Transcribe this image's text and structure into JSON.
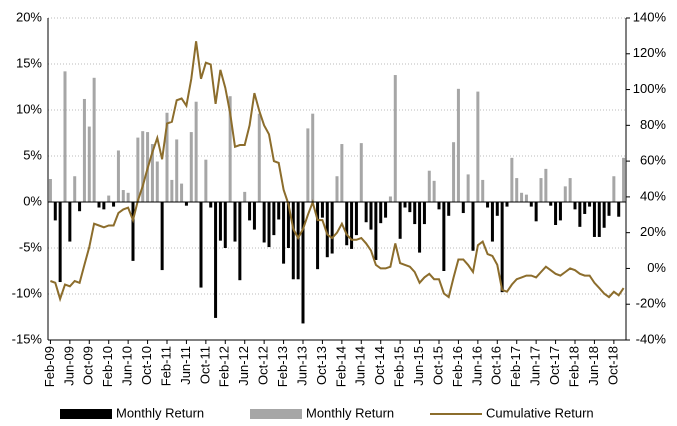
{
  "chart_data": {
    "type": "bar-line",
    "categories": [
      "Feb-09",
      null,
      null,
      null,
      "Jun-09",
      null,
      null,
      null,
      "Oct-09",
      null,
      null,
      null,
      "Feb-10",
      null,
      null,
      null,
      "Jun-10",
      null,
      null,
      null,
      "Oct-10",
      null,
      null,
      null,
      "Feb-11",
      null,
      null,
      null,
      "Jun-11",
      null,
      null,
      null,
      "Oct-11",
      null,
      null,
      null,
      "Feb-12",
      null,
      null,
      null,
      "Jun-12",
      null,
      null,
      null,
      "Oct-12",
      null,
      null,
      null,
      "Feb-13",
      null,
      null,
      null,
      "Jun-13",
      null,
      null,
      null,
      "Oct-13",
      null,
      null,
      null,
      "Feb-14",
      null,
      null,
      null,
      "Jun-14",
      null,
      null,
      null,
      "Oct-14",
      null,
      null,
      null,
      "Feb-15",
      null,
      null,
      null,
      "Jun-15",
      null,
      null,
      null,
      "Oct-15",
      null,
      null,
      null,
      "Feb-16",
      null,
      null,
      null,
      "Jun-16",
      null,
      null,
      null,
      "Oct-16",
      null,
      null,
      null,
      "Feb-17",
      null,
      null,
      null,
      "Jun-17",
      null,
      null,
      null,
      "Oct-17",
      null,
      null,
      null,
      "Feb-18",
      null,
      null,
      null,
      "Jun-18",
      null,
      null,
      null,
      "Oct-18",
      null,
      null
    ],
    "series": [
      {
        "name": "Monthly Return",
        "color": "#000000",
        "kind": "bar",
        "values": [
          null,
          -2.0,
          -8.7,
          null,
          -4.3,
          null,
          -1.0,
          null,
          null,
          null,
          -0.6,
          -0.8,
          null,
          -0.5,
          null,
          null,
          null,
          -6.4,
          null,
          null,
          null,
          null,
          null,
          -7.4,
          null,
          null,
          null,
          null,
          -0.4,
          null,
          null,
          -9.3,
          null,
          -0.6,
          -12.6,
          -4.2,
          -5.0,
          null,
          -4.3,
          -8.5,
          null,
          -2.0,
          -3.0,
          null,
          -4.4,
          -4.9,
          -3.6,
          -1.9,
          -6.7,
          -5.0,
          -8.4,
          -8.4,
          -13.2,
          null,
          null,
          -7.3,
          -1.7,
          -6.0,
          -5.6,
          null,
          null,
          -4.7,
          -5.1,
          -3.6,
          null,
          -2.2,
          -3.0,
          -6.3,
          -2.3,
          -1.7,
          null,
          null,
          -4.0,
          -0.6,
          -1.1,
          -2.4,
          -5.5,
          -2.4,
          null,
          null,
          -0.8,
          -7.5,
          -1.5,
          null,
          null,
          -1.2,
          null,
          -5.3,
          null,
          null,
          -0.6,
          -4.3,
          -1.5,
          -9.8,
          -0.5,
          null,
          null,
          null,
          null,
          -0.5,
          -2.1,
          null,
          null,
          -0.4,
          -2.5,
          -2.0,
          null,
          null,
          -0.8,
          -2.7,
          -1.3,
          -0.5,
          -3.8,
          -3.8,
          -2.8,
          -1.5,
          null,
          -1.6,
          null
        ]
      },
      {
        "name": "Monthly Return",
        "color": "#a6a6a6",
        "kind": "bar",
        "values": [
          2.5,
          null,
          null,
          14.2,
          null,
          2.8,
          null,
          11.2,
          8.2,
          13.5,
          null,
          null,
          0.7,
          null,
          5.6,
          1.3,
          1.0,
          null,
          7.0,
          7.7,
          7.6,
          6.3,
          4.4,
          null,
          9.7,
          2.4,
          6.8,
          2.0,
          null,
          7.6,
          10.9,
          null,
          4.6,
          null,
          null,
          null,
          null,
          11.5,
          null,
          null,
          1.1,
          null,
          null,
          9.6,
          null,
          null,
          null,
          null,
          null,
          null,
          null,
          null,
          null,
          8.0,
          9.6,
          null,
          null,
          null,
          null,
          2.8,
          6.3,
          null,
          null,
          null,
          6.4,
          null,
          null,
          null,
          null,
          null,
          0.6,
          13.8,
          null,
          null,
          null,
          null,
          null,
          null,
          3.4,
          2.3,
          null,
          null,
          null,
          6.5,
          12.3,
          null,
          3.0,
          null,
          12.0,
          2.4,
          null,
          null,
          null,
          null,
          null,
          4.8,
          2.6,
          1.0,
          0.8,
          null,
          null,
          2.6,
          3.6,
          null,
          null,
          null,
          1.7,
          2.6,
          null,
          null,
          null,
          null,
          null,
          null,
          null,
          null,
          2.8,
          null,
          4.8
        ]
      },
      {
        "name": "Cumulative Return",
        "color": "#8c6d2c",
        "kind": "line",
        "axis": "y2",
        "values": [
          -7,
          -8,
          -17,
          -9,
          -10,
          -7,
          -8,
          2,
          12,
          25,
          24,
          23,
          24,
          24,
          31,
          33,
          34,
          27,
          38,
          46,
          56,
          65,
          73,
          61,
          81,
          82,
          94,
          95,
          91,
          106,
          127,
          106,
          115,
          114,
          92,
          111,
          101,
          87,
          68,
          69,
          69,
          80,
          98,
          88,
          80,
          75,
          60,
          59,
          44,
          36,
          22,
          17,
          22,
          30,
          37,
          27,
          27,
          19,
          17,
          20,
          25,
          19,
          16,
          16,
          17,
          14,
          10,
          2,
          0,
          0,
          1,
          14,
          3,
          2,
          1,
          -2,
          -8,
          -5,
          -3,
          -6,
          -6,
          -14,
          -16,
          -5,
          5,
          5,
          2,
          -2,
          13,
          15,
          8,
          7,
          2,
          -12,
          -13,
          -9,
          -6,
          -5,
          -4,
          -4,
          -5,
          -2,
          1,
          -1,
          -3,
          -4,
          -2,
          0,
          -1,
          -3,
          -4,
          -4,
          -8,
          -11,
          -14,
          -16,
          -13,
          -15,
          -11
        ]
      }
    ],
    "ylim": [
      -15,
      20
    ],
    "yticks": [
      {
        "value": -15,
        "label": "-15%"
      },
      {
        "value": -10,
        "label": "-10%"
      },
      {
        "value": -5,
        "label": "-5%"
      },
      {
        "value": 0,
        "label": "0%"
      },
      {
        "value": 5,
        "label": "5%"
      },
      {
        "value": 10,
        "label": "10%"
      },
      {
        "value": 15,
        "label": "15%"
      },
      {
        "value": 20,
        "label": "20%"
      }
    ],
    "y2lim": [
      -40,
      140
    ],
    "y2ticks": [
      {
        "value": -40,
        "label": "-40%"
      },
      {
        "value": -20,
        "label": "-20%"
      },
      {
        "value": 0,
        "label": "0%"
      },
      {
        "value": 20,
        "label": "20%"
      },
      {
        "value": 40,
        "label": "40%"
      },
      {
        "value": 60,
        "label": "60%"
      },
      {
        "value": 80,
        "label": "80%"
      },
      {
        "value": 100,
        "label": "100%"
      },
      {
        "value": 120,
        "label": "120%"
      },
      {
        "value": 140,
        "label": "140%"
      }
    ],
    "grid": true,
    "legend": "bottom"
  }
}
